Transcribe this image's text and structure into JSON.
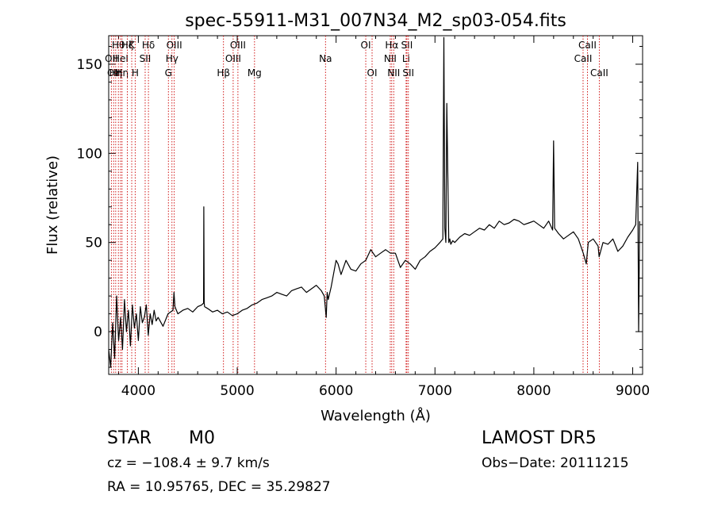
{
  "chart_data": {
    "type": "line",
    "title": "spec-55911-M31_007N34_M2_sp03-054.fits",
    "xlabel": "Wavelength (Å)",
    "ylabel": "Flux (relative)",
    "xlim": [
      3700,
      9100
    ],
    "ylim": [
      -24,
      166
    ],
    "x_ticks": [
      4000,
      5000,
      6000,
      7000,
      8000,
      9000
    ],
    "y_ticks": [
      0,
      50,
      100,
      150
    ],
    "grid": false,
    "line_color": "#000000",
    "marker_color": "#cc0000",
    "series": [
      {
        "x": [
          3700,
          3720,
          3740,
          3760,
          3780,
          3800,
          3820,
          3840,
          3860,
          3880,
          3900,
          3920,
          3940,
          3960,
          3980,
          4000,
          4020,
          4040,
          4060,
          4080,
          4100,
          4120,
          4140,
          4160,
          4180,
          4200,
          4250,
          4300,
          4350,
          4360,
          4370,
          4400,
          4450,
          4500,
          4550,
          4600,
          4640,
          4660,
          4662,
          4666,
          4670,
          4700,
          4750,
          4800,
          4850,
          4900,
          4950,
          5000,
          5050,
          5100,
          5150,
          5200,
          5250,
          5300,
          5350,
          5400,
          5450,
          5500,
          5550,
          5600,
          5650,
          5700,
          5750,
          5800,
          5850,
          5880,
          5900,
          5910,
          5920,
          5950,
          6000,
          6020,
          6050,
          6100,
          6150,
          6200,
          6250,
          6300,
          6350,
          6400,
          6450,
          6500,
          6550,
          6600,
          6650,
          6700,
          6750,
          6800,
          6850,
          6900,
          6950,
          7000,
          7050,
          7080,
          7090,
          7100,
          7110,
          7120,
          7140,
          7150,
          7160,
          7180,
          7200,
          7250,
          7300,
          7350,
          7400,
          7450,
          7500,
          7550,
          7600,
          7650,
          7700,
          7750,
          7800,
          7850,
          7900,
          7950,
          8000,
          8050,
          8100,
          8150,
          8190,
          8200,
          8210,
          8250,
          8300,
          8350,
          8400,
          8450,
          8500,
          8530,
          8550,
          8600,
          8650,
          8660,
          8700,
          8750,
          8800,
          8850,
          8900,
          8950,
          9000,
          9030,
          9050,
          9060,
          9070
        ],
        "y": [
          -10,
          -20,
          5,
          -15,
          20,
          -5,
          8,
          -10,
          18,
          0,
          12,
          -8,
          15,
          2,
          10,
          -5,
          14,
          5,
          8,
          15,
          -2,
          10,
          4,
          12,
          6,
          8,
          3,
          10,
          12,
          22,
          14,
          10,
          12,
          13,
          11,
          14,
          15,
          16,
          70,
          16,
          14,
          13,
          11,
          12,
          10,
          11,
          9,
          10,
          12,
          13,
          15,
          16,
          18,
          19,
          20,
          22,
          21,
          20,
          23,
          24,
          25,
          22,
          24,
          26,
          23,
          20,
          8,
          22,
          18,
          25,
          40,
          38,
          32,
          40,
          35,
          34,
          38,
          40,
          46,
          42,
          44,
          46,
          44,
          44,
          36,
          40,
          38,
          35,
          40,
          42,
          45,
          47,
          50,
          52,
          165,
          58,
          50,
          128,
          50,
          52,
          49,
          51,
          50,
          53,
          55,
          54,
          56,
          58,
          57,
          60,
          58,
          62,
          60,
          61,
          63,
          62,
          60,
          61,
          62,
          60,
          58,
          62,
          57,
          107,
          58,
          55,
          52,
          54,
          56,
          52,
          44,
          38,
          50,
          52,
          48,
          42,
          50,
          49,
          52,
          45,
          48,
          53,
          57,
          60,
          95,
          0,
          62
        ]
      }
    ],
    "lines": [
      {
        "wavelength": 3727,
        "label": "OII",
        "row": 1
      },
      {
        "wavelength": 3750,
        "label": "OII",
        "row": 2
      },
      {
        "wavelength": 3771,
        "label": "Hη",
        "row": 2
      },
      {
        "wavelength": 3798,
        "label": "Hθ",
        "row": 0
      },
      {
        "wavelength": 3820,
        "label": "HeI",
        "row": 1
      },
      {
        "wavelength": 3835,
        "label": "Hη",
        "row": 2
      },
      {
        "wavelength": 3889,
        "label": "Hζ",
        "row": 0
      },
      {
        "wavelength": 3933,
        "label": "K",
        "row": 0
      },
      {
        "wavelength": 3968,
        "label": "H",
        "row": 2
      },
      {
        "wavelength": 4069,
        "label": "SII",
        "row": 1
      },
      {
        "wavelength": 4102,
        "label": "Hδ",
        "row": 0
      },
      {
        "wavelength": 4304,
        "label": "G",
        "row": 2
      },
      {
        "wavelength": 4340,
        "label": "Hγ",
        "row": 1
      },
      {
        "wavelength": 4363,
        "label": "OIII",
        "row": 0
      },
      {
        "wavelength": 4861,
        "label": "Hβ",
        "row": 2
      },
      {
        "wavelength": 4959,
        "label": "OIII",
        "row": 1
      },
      {
        "wavelength": 5007,
        "label": "OIII",
        "row": 0
      },
      {
        "wavelength": 5175,
        "label": "Mg",
        "row": 2
      },
      {
        "wavelength": 5893,
        "label": "Na",
        "row": 1
      },
      {
        "wavelength": 6300,
        "label": "OI",
        "row": 0
      },
      {
        "wavelength": 6364,
        "label": "OI",
        "row": 2
      },
      {
        "wavelength": 6548,
        "label": "NII",
        "row": 1
      },
      {
        "wavelength": 6563,
        "label": "Hα",
        "row": 0
      },
      {
        "wavelength": 6583,
        "label": "NII",
        "row": 2
      },
      {
        "wavelength": 6708,
        "label": "Li",
        "row": 1
      },
      {
        "wavelength": 6716,
        "label": "SII",
        "row": 0
      },
      {
        "wavelength": 6731,
        "label": "SII",
        "row": 2
      },
      {
        "wavelength": 8498,
        "label": "CaII",
        "row": 1
      },
      {
        "wavelength": 8542,
        "label": "CaII",
        "row": 0
      },
      {
        "wavelength": 8662,
        "label": "CaII",
        "row": 2
      }
    ]
  },
  "info": {
    "class": "STAR",
    "subclass": "M0",
    "survey": "LAMOST DR5",
    "cz": "cz = −108.4 ± 9.7 km/s",
    "obs_date": "Obs−Date: 20111215",
    "coords": "RA =  10.95765, DEC =  35.29827"
  }
}
